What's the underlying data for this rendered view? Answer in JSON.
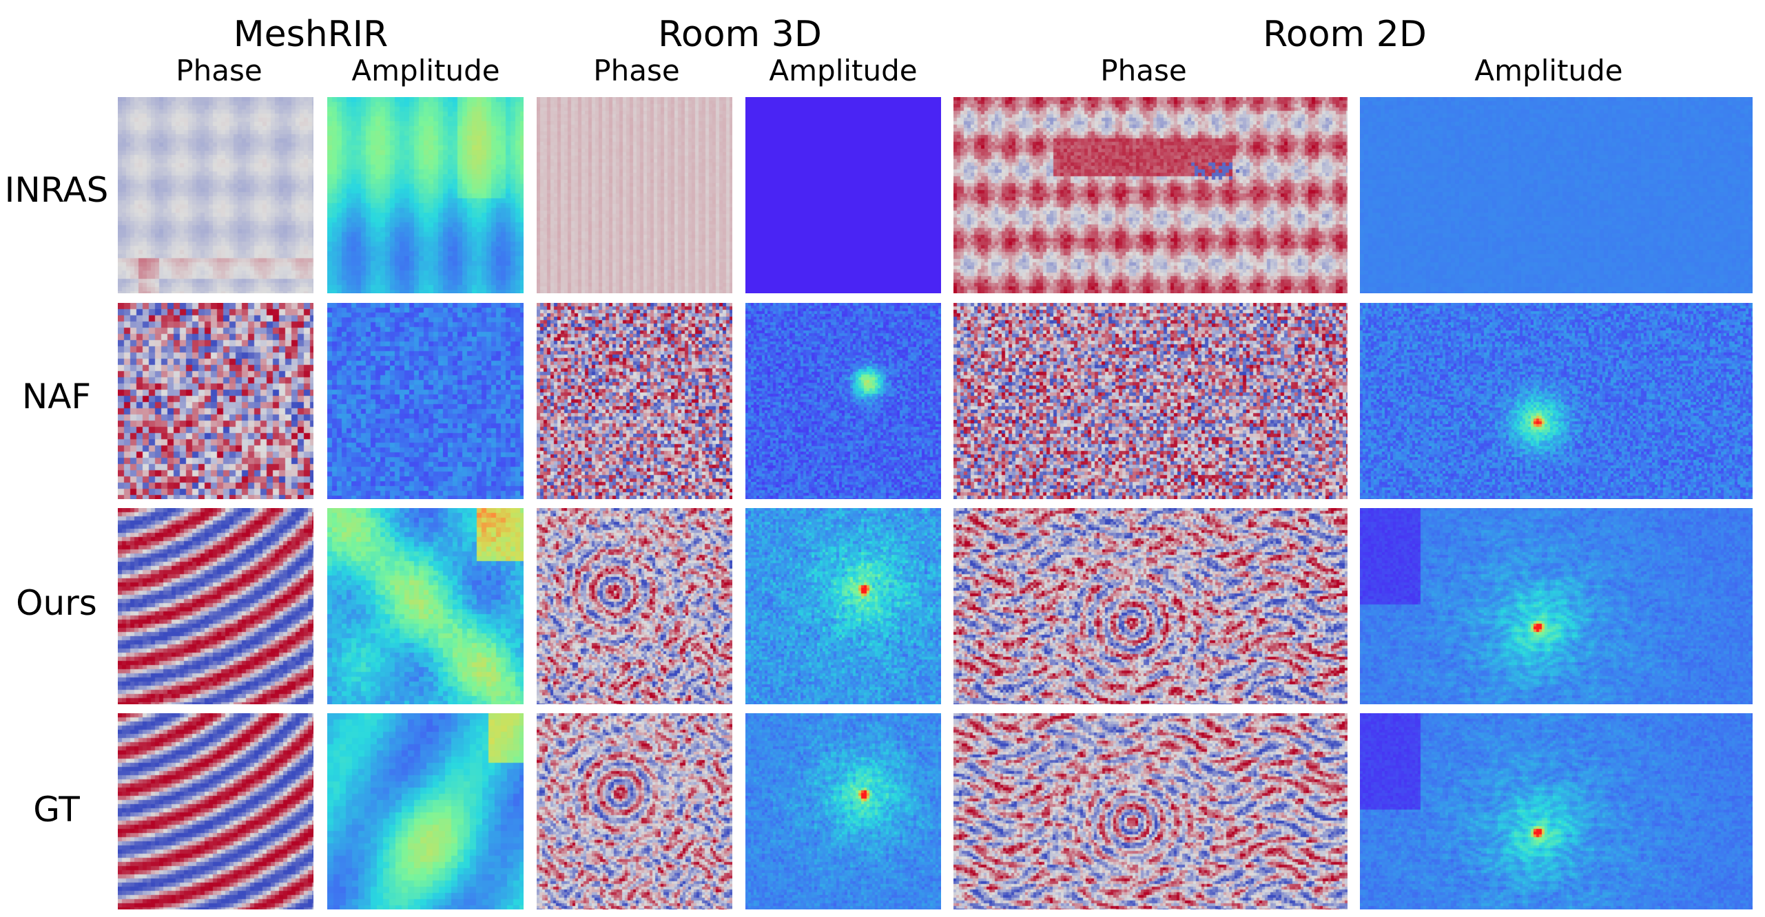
{
  "datasets": [
    {
      "name": "MeshRIR",
      "phase_label": "Phase",
      "amplitude_label": "Amplitude"
    },
    {
      "name": "Room 3D",
      "phase_label": "Phase",
      "amplitude_label": "Amplitude"
    },
    {
      "name": "Room 2D",
      "phase_label": "Phase",
      "amplitude_label": "Amplitude"
    }
  ],
  "methods": [
    "INRAS",
    "NAF",
    "Ours",
    "GT"
  ],
  "colormaps": {
    "phase": "coolwarm",
    "amplitude": "rainbow",
    "phase_stops": [
      "#3b4cc0",
      "#dddddd",
      "#b40426"
    ],
    "amplitude_stops": [
      "#4b1ef5",
      "#3d82f0",
      "#2ad8e0",
      "#7cf59a",
      "#d2e05a",
      "#ff8a3a",
      "#ff1a1a"
    ]
  }
}
